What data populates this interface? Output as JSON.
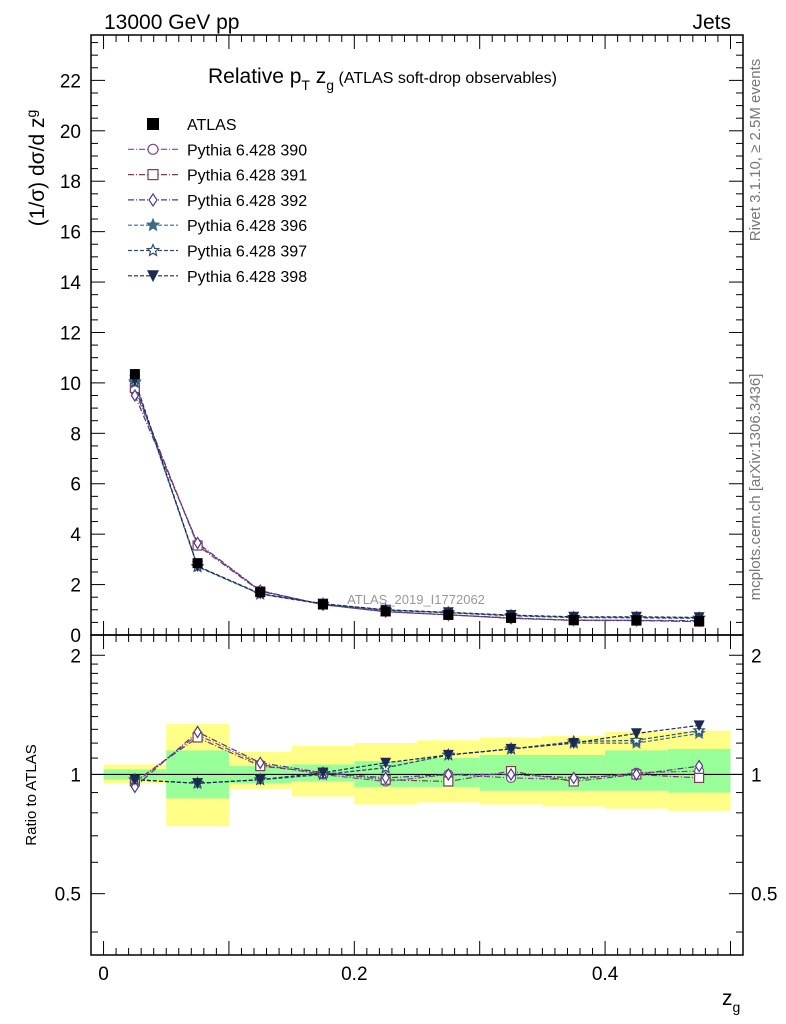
{
  "header": {
    "energy": "13000 GeV pp",
    "category": "Jets",
    "side_rivet": "Rivet 3.1.10, ≥ 2.5M events",
    "side_mcplots": "mcplots.cern.ch [arXiv:1306.3436]",
    "analysis": "ATLAS_2019_I1772062"
  },
  "chart_data": {
    "type": "line",
    "title": "Relative p_T z_g (ATLAS soft-drop observables)",
    "title_parts": {
      "main": "Relative p",
      "sub1": "T",
      "mid": " z",
      "sub2": "g",
      "rest": " (ATLAS soft-drop observables)"
    },
    "ylabel": "(1/σ) dσ/d z_g",
    "ylabel_parts": {
      "main": "(1/σ) dσ/d z",
      "sub": "g"
    },
    "xlabel": "z_g",
    "xlabel_parts": {
      "main": "z",
      "sub": "g"
    },
    "ratio_ylabel": "Ratio to ATLAS",
    "xlim": [
      -0.01,
      0.51
    ],
    "ylim": [
      0,
      23.8
    ],
    "ratio_ylim": [
      0.35,
      2.25
    ],
    "x_ticks": [
      "0",
      "0.2",
      "0.4"
    ],
    "x_tick_values": [
      0,
      0.2,
      0.4
    ],
    "y_ticks": [
      "0",
      "2",
      "4",
      "6",
      "8",
      "10",
      "12",
      "14",
      "16",
      "18",
      "20",
      "22"
    ],
    "y_tick_values": [
      0,
      2,
      4,
      6,
      8,
      10,
      12,
      14,
      16,
      18,
      20,
      22
    ],
    "ratio_ticks": [
      "0.5",
      "1",
      "2"
    ],
    "ratio_tick_values": [
      0.5,
      1,
      2
    ],
    "legend_position": "top-left",
    "grid": false,
    "x": [
      0.025,
      0.075,
      0.125,
      0.175,
      0.225,
      0.275,
      0.325,
      0.375,
      0.425,
      0.475
    ],
    "bin_edges": [
      0,
      0.05,
      0.1,
      0.15,
      0.2,
      0.25,
      0.3,
      0.35,
      0.4,
      0.45,
      0.5
    ],
    "data": {
      "name": "ATLAS",
      "values": [
        10.35,
        2.85,
        1.7,
        1.22,
        0.95,
        0.8,
        0.68,
        0.6,
        0.58,
        0.55
      ]
    },
    "band_inner": [
      [
        0.97,
        1.03
      ],
      [
        0.87,
        1.15
      ],
      [
        0.95,
        1.05
      ],
      [
        0.96,
        1.06
      ],
      [
        0.93,
        1.08
      ],
      [
        0.93,
        1.1
      ],
      [
        0.91,
        1.12
      ],
      [
        0.91,
        1.12
      ],
      [
        0.91,
        1.15
      ],
      [
        0.9,
        1.16
      ]
    ],
    "band_outer": [
      [
        0.95,
        1.06
      ],
      [
        0.74,
        1.34
      ],
      [
        0.92,
        1.14
      ],
      [
        0.88,
        1.18
      ],
      [
        0.84,
        1.2
      ],
      [
        0.85,
        1.22
      ],
      [
        0.84,
        1.24
      ],
      [
        0.83,
        1.25
      ],
      [
        0.82,
        1.28
      ],
      [
        0.81,
        1.29
      ]
    ],
    "series": [
      {
        "name": "Pythia 6.428 390",
        "color": "#7b4a8a",
        "marker": "circle-open",
        "dash": "6,2,1,2",
        "values": [
          9.7,
          3.6,
          1.75,
          1.2,
          0.92,
          0.8,
          0.66,
          0.58,
          0.58,
          0.53
        ],
        "ratio": [
          0.95,
          1.26,
          1.06,
          1.0,
          0.96,
          1.0,
          0.98,
          0.97,
          1.01,
          1.02
        ]
      },
      {
        "name": "Pythia 6.428 391",
        "color": "#7a3f55",
        "marker": "square-open",
        "dash": "6,2,1,2",
        "values": [
          9.8,
          3.55,
          1.73,
          1.21,
          0.93,
          0.8,
          0.68,
          0.58,
          0.57,
          0.53
        ],
        "ratio": [
          0.96,
          1.24,
          1.05,
          1.01,
          0.97,
          0.96,
          1.02,
          0.96,
          1.0,
          0.98
        ]
      },
      {
        "name": "Pythia 6.428 392",
        "color": "#4b3a8c",
        "marker": "diamond-open",
        "dash": "6,2,1,2",
        "values": [
          9.5,
          3.65,
          1.76,
          1.2,
          0.93,
          0.8,
          0.67,
          0.59,
          0.58,
          0.57
        ],
        "ratio": [
          0.93,
          1.28,
          1.07,
          1.01,
          0.98,
          1.0,
          1.0,
          0.98,
          1.0,
          1.05
        ]
      },
      {
        "name": "Pythia 6.428 396",
        "color": "#3d6a86",
        "marker": "star-filled",
        "dash": "4,2",
        "values": [
          10.0,
          2.7,
          1.62,
          1.22,
          0.98,
          0.88,
          0.76,
          0.69,
          0.68,
          0.66
        ],
        "ratio": [
          0.97,
          0.95,
          0.97,
          1.0,
          1.04,
          1.12,
          1.16,
          1.2,
          1.2,
          1.27
        ]
      },
      {
        "name": "Pythia 6.428 397",
        "color": "#2f4f70",
        "marker": "star-open",
        "dash": "4,2",
        "values": [
          10.05,
          2.72,
          1.63,
          1.23,
          0.99,
          0.89,
          0.77,
          0.7,
          0.7,
          0.68
        ],
        "ratio": [
          0.97,
          0.95,
          0.97,
          1.0,
          1.04,
          1.12,
          1.16,
          1.21,
          1.22,
          1.29
        ]
      },
      {
        "name": "Pythia 6.428 398",
        "color": "#1c2a52",
        "marker": "triangle-down-filled",
        "dash": "4,2",
        "values": [
          10.1,
          2.73,
          1.64,
          1.24,
          1.0,
          0.9,
          0.79,
          0.72,
          0.72,
          0.7
        ],
        "ratio": [
          0.97,
          0.95,
          0.97,
          1.01,
          1.07,
          1.12,
          1.16,
          1.2,
          1.27,
          1.33
        ]
      }
    ]
  }
}
